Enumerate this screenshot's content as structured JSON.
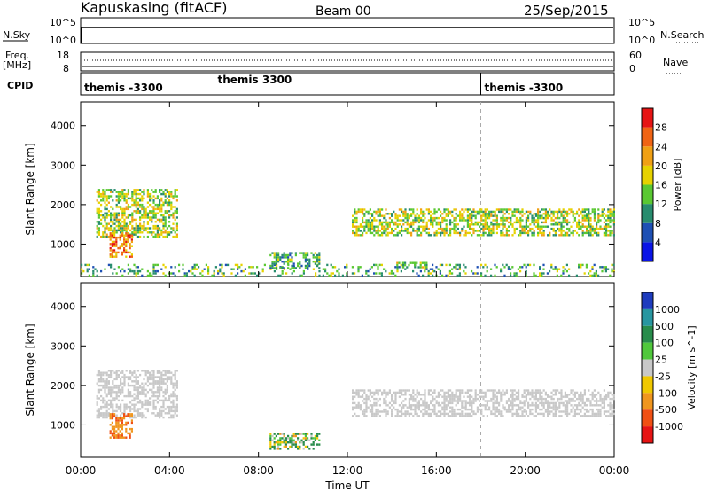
{
  "header": {
    "station": "Kapuskasing (fitACF)",
    "beam": "Beam 00",
    "date": "25/Sep/2015"
  },
  "sky_panel": {
    "left_label": "N.Sky",
    "left_ticks": [
      "10^5",
      "10^0"
    ],
    "right_ticks": [
      "10^5",
      "10^0"
    ],
    "right_label": "N.Search"
  },
  "freq_panel": {
    "left_label_1": "Freq.",
    "left_label_2": "[MHz]",
    "left_ticks": [
      "18",
      "8"
    ],
    "right_ticks": [
      "60",
      "0"
    ],
    "right_label": "Nave"
  },
  "cpid_panel": {
    "label": "CPID",
    "programs": [
      {
        "name": "themis -3300",
        "start_hour": 0
      },
      {
        "name": "themis 3300",
        "start_hour": 6
      },
      {
        "name": "themis -3300",
        "start_hour": 18
      }
    ]
  },
  "chart_data": [
    {
      "type": "heatmap",
      "title": "",
      "xlabel": "Time UT",
      "ylabel": "Slant Range [km]",
      "colorbar_label": "Power [dB]",
      "xlim": [
        0,
        24
      ],
      "ylim": [
        180,
        4600
      ],
      "x_ticks": [
        "00:00",
        "04:00",
        "08:00",
        "12:00",
        "16:00",
        "20:00",
        "00:00"
      ],
      "y_ticks": [
        1000,
        2000,
        3000,
        4000
      ],
      "colorbar_ticks": [
        "4",
        "8",
        "12",
        "16",
        "20",
        "24",
        "28"
      ],
      "colorbar_colors": [
        "#0a14e6",
        "#1e50b4",
        "#288c6e",
        "#5ac832",
        "#e6d200",
        "#f0a014",
        "#f06414",
        "#e61414"
      ],
      "regions": [
        {
          "name": "morning-band",
          "hours": [
            0.7,
            4.3
          ],
          "range_km": [
            1200,
            2400
          ],
          "power_db": 16
        },
        {
          "name": "dawn-patch",
          "hours": [
            1.3,
            2.3
          ],
          "range_km": [
            700,
            1300
          ],
          "power_db": 24
        },
        {
          "name": "ground-scatter-near",
          "hours": [
            0,
            24
          ],
          "range_km": [
            200,
            500
          ],
          "power_db": 12
        },
        {
          "name": "noon-patch",
          "hours": [
            8.5,
            10.7
          ],
          "range_km": [
            400,
            800
          ],
          "power_db": 12
        },
        {
          "name": "afternoon-band",
          "hours": [
            12.2,
            24
          ],
          "range_km": [
            1200,
            1900
          ],
          "power_db": 16
        },
        {
          "name": "afternoon-patch",
          "hours": [
            14.2,
            15.6
          ],
          "range_km": [
            400,
            550
          ],
          "power_db": 16
        }
      ]
    },
    {
      "type": "heatmap",
      "title": "",
      "xlabel": "Time UT",
      "ylabel": "Slant Range [km]",
      "colorbar_label": "Velocity [m s^-1]",
      "xlim": [
        0,
        24
      ],
      "ylim": [
        180,
        4600
      ],
      "x_ticks": [
        "00:00",
        "04:00",
        "08:00",
        "12:00",
        "16:00",
        "20:00",
        "00:00"
      ],
      "y_ticks": [
        1000,
        2000,
        3000,
        4000
      ],
      "colorbar_ticks": [
        "1000",
        "500",
        "100",
        "25",
        "-25",
        "-100",
        "-500",
        "-1000"
      ],
      "colorbar_colors": [
        "#1e3cbe",
        "#2896a0",
        "#288c4b",
        "#50c83c",
        "#c8c8c8",
        "#f0c800",
        "#f0961e",
        "#f05014",
        "#e61414"
      ],
      "regions": [
        {
          "name": "morning-band",
          "hours": [
            0.7,
            4.3
          ],
          "range_km": [
            1200,
            2400
          ],
          "velocity_ms": 0
        },
        {
          "name": "dawn-patch",
          "hours": [
            1.3,
            2.3
          ],
          "range_km": [
            700,
            1300
          ],
          "velocity_ms": -400
        },
        {
          "name": "noon-patch",
          "hours": [
            8.5,
            10.7
          ],
          "range_km": [
            400,
            800
          ],
          "velocity_ms": 100
        },
        {
          "name": "afternoon-band",
          "hours": [
            12.2,
            24
          ],
          "range_km": [
            1200,
            1900
          ],
          "velocity_ms": 0
        }
      ]
    }
  ]
}
